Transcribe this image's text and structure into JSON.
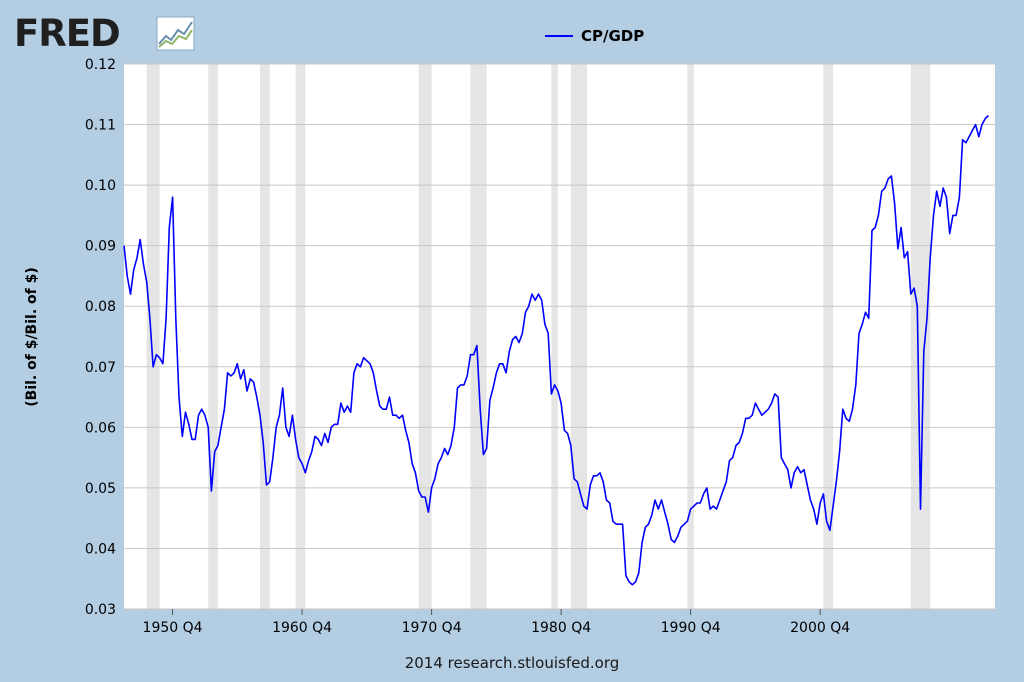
{
  "logo": {
    "text": "FRED"
  },
  "footer": {
    "text": "2014 research.stlouisfed.org"
  },
  "colors": {
    "background": "#b3cde3",
    "plot": "#ffffff",
    "line": "#0000ff",
    "recession": "#e5e5e5",
    "grid": "#c8c8c8"
  },
  "chart_data": {
    "type": "line",
    "title": "",
    "xlabel": "",
    "ylabel": "(Bil. of $/Bil. of $)",
    "ylim": [
      0.03,
      0.12
    ],
    "xlim": [
      1947.0,
      2014.25
    ],
    "grid": true,
    "legend_position": "top-center",
    "y_ticks": [
      0.03,
      0.04,
      0.05,
      0.06,
      0.07,
      0.08,
      0.09,
      0.1,
      0.11,
      0.12
    ],
    "y_tick_labels": [
      "0.03",
      "0.04",
      "0.05",
      "0.06",
      "0.07",
      "0.08",
      "0.09",
      "0.10",
      "0.11",
      "0.12"
    ],
    "x_ticks": [
      1950.75,
      1960.75,
      1970.75,
      1980.75,
      1990.75,
      2000.75
    ],
    "x_tick_labels": [
      "1950 Q4",
      "1960 Q4",
      "1970 Q4",
      "1980 Q4",
      "1990 Q4",
      "2000 Q4"
    ],
    "recessions": [
      [
        1948.75,
        1949.75
      ],
      [
        1953.5,
        1954.25
      ],
      [
        1957.5,
        1958.25
      ],
      [
        1960.25,
        1961.0
      ],
      [
        1969.75,
        1970.75
      ],
      [
        1973.75,
        1975.0
      ],
      [
        1980.0,
        1980.5
      ],
      [
        1981.5,
        1982.75
      ],
      [
        1990.5,
        1991.0
      ],
      [
        2001.0,
        2001.75
      ],
      [
        2007.75,
        2009.25
      ]
    ],
    "series": [
      {
        "name": "CP/GDP",
        "points": [
          [
            1947.0,
            0.09
          ],
          [
            1947.25,
            0.085
          ],
          [
            1947.5,
            0.082
          ],
          [
            1947.75,
            0.086
          ],
          [
            1948.0,
            0.088
          ],
          [
            1948.25,
            0.091
          ],
          [
            1948.5,
            0.087
          ],
          [
            1948.75,
            0.084
          ],
          [
            1949.0,
            0.078
          ],
          [
            1949.25,
            0.07
          ],
          [
            1949.5,
            0.072
          ],
          [
            1949.75,
            0.0715
          ],
          [
            1950.0,
            0.0705
          ],
          [
            1950.25,
            0.078
          ],
          [
            1950.5,
            0.093
          ],
          [
            1950.75,
            0.098
          ],
          [
            1951.0,
            0.078
          ],
          [
            1951.25,
            0.065
          ],
          [
            1951.5,
            0.0585
          ],
          [
            1951.75,
            0.0625
          ],
          [
            1952.0,
            0.0605
          ],
          [
            1952.25,
            0.058
          ],
          [
            1952.5,
            0.058
          ],
          [
            1952.75,
            0.062
          ],
          [
            1953.0,
            0.063
          ],
          [
            1953.25,
            0.062
          ],
          [
            1953.5,
            0.06
          ],
          [
            1953.75,
            0.0495
          ],
          [
            1954.0,
            0.056
          ],
          [
            1954.25,
            0.057
          ],
          [
            1954.5,
            0.06
          ],
          [
            1954.75,
            0.063
          ],
          [
            1955.0,
            0.069
          ],
          [
            1955.25,
            0.0685
          ],
          [
            1955.5,
            0.069
          ],
          [
            1955.75,
            0.0705
          ],
          [
            1956.0,
            0.068
          ],
          [
            1956.25,
            0.0695
          ],
          [
            1956.5,
            0.066
          ],
          [
            1956.75,
            0.068
          ],
          [
            1957.0,
            0.0675
          ],
          [
            1957.25,
            0.065
          ],
          [
            1957.5,
            0.062
          ],
          [
            1957.75,
            0.0575
          ],
          [
            1958.0,
            0.0505
          ],
          [
            1958.25,
            0.051
          ],
          [
            1958.5,
            0.055
          ],
          [
            1958.75,
            0.06
          ],
          [
            1959.0,
            0.062
          ],
          [
            1959.25,
            0.0665
          ],
          [
            1959.5,
            0.06
          ],
          [
            1959.75,
            0.0585
          ],
          [
            1960.0,
            0.062
          ],
          [
            1960.25,
            0.058
          ],
          [
            1960.5,
            0.055
          ],
          [
            1960.75,
            0.054
          ],
          [
            1961.0,
            0.0525
          ],
          [
            1961.25,
            0.0545
          ],
          [
            1961.5,
            0.056
          ],
          [
            1961.75,
            0.0585
          ],
          [
            1962.0,
            0.058
          ],
          [
            1962.25,
            0.057
          ],
          [
            1962.5,
            0.059
          ],
          [
            1962.75,
            0.0575
          ],
          [
            1963.0,
            0.06
          ],
          [
            1963.25,
            0.0605
          ],
          [
            1963.5,
            0.0605
          ],
          [
            1963.75,
            0.064
          ],
          [
            1964.0,
            0.0625
          ],
          [
            1964.25,
            0.0635
          ],
          [
            1964.5,
            0.0625
          ],
          [
            1964.75,
            0.069
          ],
          [
            1965.0,
            0.0705
          ],
          [
            1965.25,
            0.07
          ],
          [
            1965.5,
            0.0715
          ],
          [
            1965.75,
            0.071
          ],
          [
            1966.0,
            0.0705
          ],
          [
            1966.25,
            0.069
          ],
          [
            1966.5,
            0.066
          ],
          [
            1966.75,
            0.0635
          ],
          [
            1967.0,
            0.063
          ],
          [
            1967.25,
            0.063
          ],
          [
            1967.5,
            0.065
          ],
          [
            1967.75,
            0.062
          ],
          [
            1968.0,
            0.062
          ],
          [
            1968.25,
            0.0615
          ],
          [
            1968.5,
            0.062
          ],
          [
            1968.75,
            0.0595
          ],
          [
            1969.0,
            0.0575
          ],
          [
            1969.25,
            0.054
          ],
          [
            1969.5,
            0.0525
          ],
          [
            1969.75,
            0.0495
          ],
          [
            1970.0,
            0.0485
          ],
          [
            1970.25,
            0.0485
          ],
          [
            1970.5,
            0.046
          ],
          [
            1970.75,
            0.05
          ],
          [
            1971.0,
            0.0515
          ],
          [
            1971.25,
            0.054
          ],
          [
            1971.5,
            0.055
          ],
          [
            1971.75,
            0.0565
          ],
          [
            1972.0,
            0.0555
          ],
          [
            1972.25,
            0.057
          ],
          [
            1972.5,
            0.06
          ],
          [
            1972.75,
            0.0665
          ],
          [
            1973.0,
            0.067
          ],
          [
            1973.25,
            0.067
          ],
          [
            1973.5,
            0.0685
          ],
          [
            1973.75,
            0.072
          ],
          [
            1974.0,
            0.072
          ],
          [
            1974.25,
            0.0735
          ],
          [
            1974.5,
            0.063
          ],
          [
            1974.75,
            0.0555
          ],
          [
            1975.0,
            0.0565
          ],
          [
            1975.25,
            0.0645
          ],
          [
            1975.5,
            0.0665
          ],
          [
            1975.75,
            0.069
          ],
          [
            1976.0,
            0.0705
          ],
          [
            1976.25,
            0.0705
          ],
          [
            1976.5,
            0.069
          ],
          [
            1976.75,
            0.0725
          ],
          [
            1977.0,
            0.0745
          ],
          [
            1977.25,
            0.075
          ],
          [
            1977.5,
            0.074
          ],
          [
            1977.75,
            0.0755
          ],
          [
            1978.0,
            0.079
          ],
          [
            1978.25,
            0.08
          ],
          [
            1978.5,
            0.082
          ],
          [
            1978.75,
            0.081
          ],
          [
            1979.0,
            0.082
          ],
          [
            1979.25,
            0.081
          ],
          [
            1979.5,
            0.077
          ],
          [
            1979.75,
            0.0755
          ],
          [
            1980.0,
            0.0655
          ],
          [
            1980.25,
            0.067
          ],
          [
            1980.5,
            0.066
          ],
          [
            1980.75,
            0.064
          ],
          [
            1981.0,
            0.0595
          ],
          [
            1981.25,
            0.059
          ],
          [
            1981.5,
            0.057
          ],
          [
            1981.75,
            0.0515
          ],
          [
            1982.0,
            0.051
          ],
          [
            1982.25,
            0.049
          ],
          [
            1982.5,
            0.047
          ],
          [
            1982.75,
            0.0465
          ],
          [
            1983.0,
            0.0505
          ],
          [
            1983.25,
            0.052
          ],
          [
            1983.5,
            0.052
          ],
          [
            1983.75,
            0.0525
          ],
          [
            1984.0,
            0.051
          ],
          [
            1984.25,
            0.048
          ],
          [
            1984.5,
            0.0475
          ],
          [
            1984.75,
            0.0445
          ],
          [
            1985.0,
            0.044
          ],
          [
            1985.25,
            0.044
          ],
          [
            1985.5,
            0.044
          ],
          [
            1985.75,
            0.0355
          ],
          [
            1986.0,
            0.0345
          ],
          [
            1986.25,
            0.034
          ],
          [
            1986.5,
            0.0345
          ],
          [
            1986.75,
            0.036
          ],
          [
            1987.0,
            0.041
          ],
          [
            1987.25,
            0.0435
          ],
          [
            1987.5,
            0.044
          ],
          [
            1987.75,
            0.0455
          ],
          [
            1988.0,
            0.048
          ],
          [
            1988.25,
            0.0465
          ],
          [
            1988.5,
            0.048
          ],
          [
            1988.75,
            0.046
          ],
          [
            1989.0,
            0.044
          ],
          [
            1989.25,
            0.0415
          ],
          [
            1989.5,
            0.041
          ],
          [
            1989.75,
            0.042
          ],
          [
            1990.0,
            0.0435
          ],
          [
            1990.25,
            0.044
          ],
          [
            1990.5,
            0.0445
          ],
          [
            1990.75,
            0.0465
          ],
          [
            1991.0,
            0.047
          ],
          [
            1991.25,
            0.0475
          ],
          [
            1991.5,
            0.0475
          ],
          [
            1991.75,
            0.049
          ],
          [
            1992.0,
            0.05
          ],
          [
            1992.25,
            0.0465
          ],
          [
            1992.5,
            0.047
          ],
          [
            1992.75,
            0.0465
          ],
          [
            1993.0,
            0.048
          ],
          [
            1993.25,
            0.0495
          ],
          [
            1993.5,
            0.051
          ],
          [
            1993.75,
            0.0545
          ],
          [
            1994.0,
            0.055
          ],
          [
            1994.25,
            0.057
          ],
          [
            1994.5,
            0.0575
          ],
          [
            1994.75,
            0.059
          ],
          [
            1995.0,
            0.0615
          ],
          [
            1995.25,
            0.0615
          ],
          [
            1995.5,
            0.062
          ],
          [
            1995.75,
            0.064
          ],
          [
            1996.0,
            0.063
          ],
          [
            1996.25,
            0.062
          ],
          [
            1996.5,
            0.0625
          ],
          [
            1996.75,
            0.063
          ],
          [
            1997.0,
            0.064
          ],
          [
            1997.25,
            0.0655
          ],
          [
            1997.5,
            0.065
          ],
          [
            1997.75,
            0.055
          ],
          [
            1998.0,
            0.054
          ],
          [
            1998.25,
            0.053
          ],
          [
            1998.5,
            0.05
          ],
          [
            1998.75,
            0.0525
          ],
          [
            1999.0,
            0.0535
          ],
          [
            1999.25,
            0.0525
          ],
          [
            1999.5,
            0.053
          ],
          [
            1999.75,
            0.0505
          ],
          [
            2000.0,
            0.048
          ],
          [
            2000.25,
            0.0465
          ],
          [
            2000.5,
            0.044
          ],
          [
            2000.75,
            0.0475
          ],
          [
            2001.0,
            0.049
          ],
          [
            2001.25,
            0.0445
          ],
          [
            2001.5,
            0.043
          ],
          [
            2001.75,
            0.047
          ],
          [
            2002.0,
            0.051
          ],
          [
            2002.25,
            0.056
          ],
          [
            2002.5,
            0.063
          ],
          [
            2002.75,
            0.0615
          ],
          [
            2003.0,
            0.061
          ],
          [
            2003.25,
            0.063
          ],
          [
            2003.5,
            0.067
          ],
          [
            2003.75,
            0.0755
          ],
          [
            2004.0,
            0.077
          ],
          [
            2004.25,
            0.079
          ],
          [
            2004.5,
            0.078
          ],
          [
            2004.75,
            0.0925
          ],
          [
            2005.0,
            0.093
          ],
          [
            2005.25,
            0.095
          ],
          [
            2005.5,
            0.099
          ],
          [
            2005.75,
            0.0995
          ],
          [
            2006.0,
            0.101
          ],
          [
            2006.25,
            0.1015
          ],
          [
            2006.5,
            0.097
          ],
          [
            2006.75,
            0.0895
          ],
          [
            2007.0,
            0.093
          ],
          [
            2007.25,
            0.088
          ],
          [
            2007.5,
            0.089
          ],
          [
            2007.75,
            0.082
          ],
          [
            2008.0,
            0.083
          ],
          [
            2008.25,
            0.08
          ],
          [
            2008.5,
            0.0465
          ],
          [
            2008.75,
            0.0725
          ],
          [
            2009.0,
            0.078
          ],
          [
            2009.25,
            0.088
          ],
          [
            2009.5,
            0.095
          ],
          [
            2009.75,
            0.099
          ],
          [
            2010.0,
            0.0965
          ],
          [
            2010.25,
            0.0995
          ],
          [
            2010.5,
            0.098
          ],
          [
            2010.75,
            0.092
          ],
          [
            2011.0,
            0.095
          ],
          [
            2011.25,
            0.095
          ],
          [
            2011.5,
            0.098
          ],
          [
            2011.75,
            0.1075
          ],
          [
            2012.0,
            0.107
          ],
          [
            2012.25,
            0.108
          ],
          [
            2012.5,
            0.109
          ],
          [
            2012.75,
            0.11
          ],
          [
            2013.0,
            0.108
          ],
          [
            2013.25,
            0.11
          ],
          [
            2013.5,
            0.111
          ],
          [
            2013.75,
            0.1115
          ]
        ]
      }
    ]
  }
}
